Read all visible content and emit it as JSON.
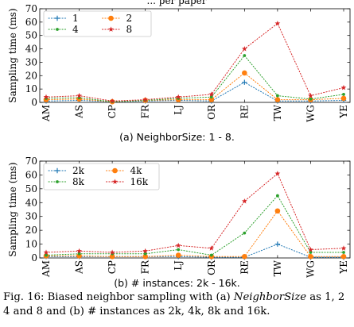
{
  "top_fragment": "...  per  paper",
  "chart_data": [
    {
      "type": "line",
      "ylabel": "Sampling time (ms)",
      "xlabel": "",
      "ylim": [
        0,
        70
      ],
      "yticks": [
        0,
        10,
        20,
        30,
        40,
        50,
        60,
        70
      ],
      "categories": [
        "AM",
        "AS",
        "CP",
        "FR",
        "LJ",
        "OR",
        "RE",
        "TW",
        "WG",
        "YE"
      ],
      "grid": false,
      "legend": "top-left, 2 columns",
      "caption": "(a) NeighborSize: 1 - 8.",
      "series": [
        {
          "name": "1",
          "color": "#1f77b4",
          "marker": "plus",
          "values": [
            1,
            1.5,
            0.5,
            1,
            1.5,
            1,
            15,
            1,
            1,
            1.5
          ]
        },
        {
          "name": "2",
          "color": "#ff7f0e",
          "marker": "circle",
          "values": [
            2,
            2.5,
            0.5,
            1.5,
            2,
            2,
            22,
            2,
            2,
            3
          ]
        },
        {
          "name": "4",
          "color": "#2ca02c",
          "marker": "dot",
          "values": [
            3,
            3.5,
            0.5,
            1.5,
            3,
            4,
            35,
            5,
            2.5,
            6
          ]
        },
        {
          "name": "8",
          "color": "#d62728",
          "marker": "star",
          "values": [
            4,
            5,
            1,
            2,
            4,
            6,
            40,
            59,
            5,
            11
          ]
        }
      ]
    },
    {
      "type": "line",
      "ylabel": "Sampling time (ms)",
      "xlabel": "",
      "ylim": [
        0,
        70
      ],
      "yticks": [
        0,
        10,
        20,
        30,
        40,
        50,
        60,
        70
      ],
      "categories": [
        "AM",
        "AS",
        "CP",
        "FR",
        "LJ",
        "OR",
        "RE",
        "TW",
        "WG",
        "YE"
      ],
      "grid": false,
      "legend": "top-left, 2 columns",
      "caption": "(b) # instances: 2k - 16k.",
      "series": [
        {
          "name": "2k",
          "color": "#1f77b4",
          "marker": "plus",
          "values": [
            1,
            1,
            1,
            1,
            1,
            0.5,
            0.5,
            10,
            0.5,
            0.5
          ]
        },
        {
          "name": "4k",
          "color": "#ff7f0e",
          "marker": "circle",
          "values": [
            1.5,
            1.5,
            1,
            1,
            2,
            1,
            1,
            34,
            1,
            1
          ]
        },
        {
          "name": "8k",
          "color": "#2ca02c",
          "marker": "dot",
          "values": [
            2,
            3,
            3,
            3,
            6,
            2,
            18,
            45,
            4,
            4
          ]
        },
        {
          "name": "16k",
          "color": "#d62728",
          "marker": "star",
          "values": [
            4,
            5,
            4,
            5,
            9,
            7,
            41,
            61,
            6,
            7
          ]
        }
      ]
    }
  ],
  "figure_caption": {
    "label": "Fig. 16:",
    "text_1": " Biased neighbor sampling with (a) ",
    "emph": "NeighborSize",
    "text_2": " as 1, 2 4 and 8 and (b) # instances as 2k, 4k, 8k and 16k."
  }
}
